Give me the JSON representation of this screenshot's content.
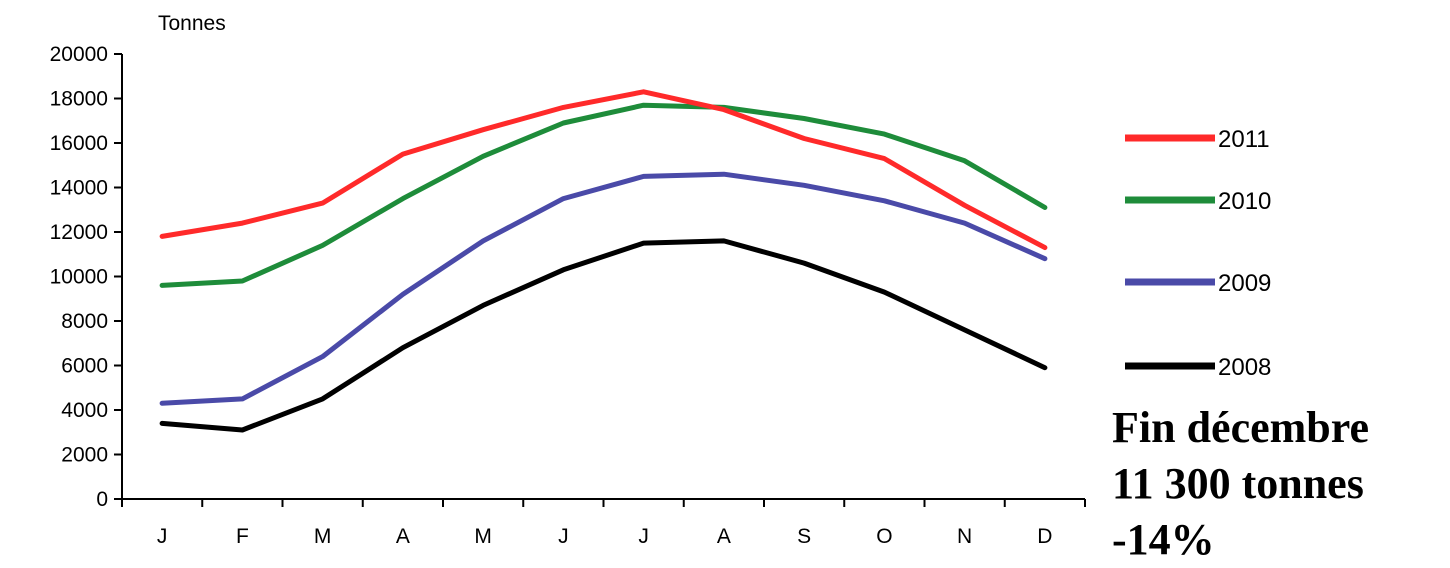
{
  "chart_data": {
    "type": "line",
    "ylabel": "Tonnes",
    "xlabel": "",
    "categories": [
      "J",
      "F",
      "M",
      "A",
      "M",
      "J",
      "J",
      "A",
      "S",
      "O",
      "N",
      "D"
    ],
    "ylim": [
      0,
      20000
    ],
    "yticks": [
      0,
      2000,
      4000,
      6000,
      8000,
      10000,
      12000,
      14000,
      16000,
      18000,
      20000
    ],
    "grid": false,
    "legend_position": "right",
    "series": [
      {
        "name": "2011",
        "color": "#ff2a2a",
        "values": [
          11800,
          12400,
          13300,
          15500,
          16600,
          17600,
          18300,
          17500,
          16200,
          15300,
          13200,
          11300
        ]
      },
      {
        "name": "2010",
        "color": "#1e8c3a",
        "values": [
          9600,
          9800,
          11400,
          13500,
          15400,
          16900,
          17700,
          17600,
          17100,
          16400,
          15200,
          13100
        ]
      },
      {
        "name": "2009",
        "color": "#4a4aa8",
        "values": [
          4300,
          4500,
          6400,
          9200,
          11600,
          13500,
          14500,
          14600,
          14100,
          13400,
          12400,
          10800
        ]
      },
      {
        "name": "2008",
        "color": "#000000",
        "values": [
          3400,
          3100,
          4500,
          6800,
          8700,
          10300,
          11500,
          11600,
          10600,
          9300,
          7600,
          5900
        ]
      }
    ]
  },
  "annotation": {
    "line1": "Fin décembre",
    "line2": "11 300 tonnes",
    "line3": "-14%"
  }
}
